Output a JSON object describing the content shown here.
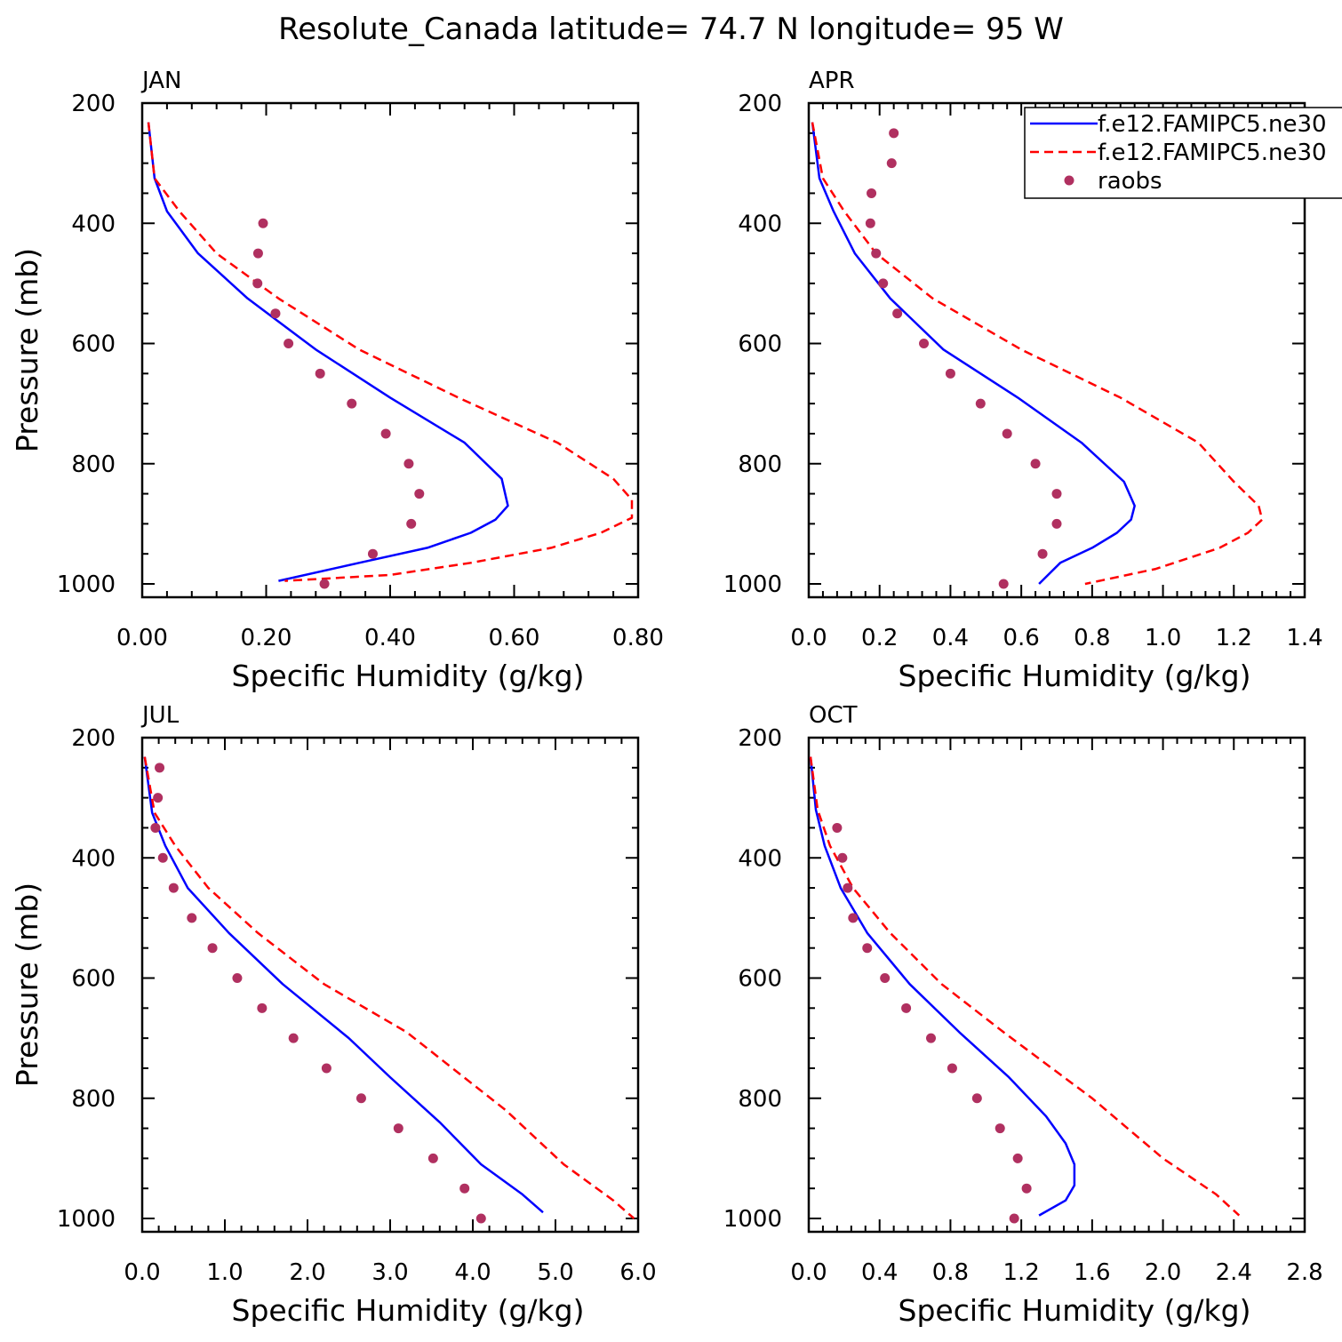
{
  "title": "Resolute_Canada  latitude= 74.7 N longitude= 95 W",
  "colors": {
    "model1": "#0000ff",
    "model2": "#ff0000",
    "raobs": "#b03060",
    "axis": "#000000"
  },
  "legend": {
    "entries": [
      {
        "label": "f.e12.FAMIPC5.ne30",
        "style": "solid",
        "color": "#0000ff"
      },
      {
        "label": "f.e12.FAMIPC5.ne30",
        "style": "dashed",
        "color": "#ff0000"
      },
      {
        "label": "raobs",
        "style": "marker",
        "color": "#b03060"
      }
    ],
    "placement": "top-right of APR panel"
  },
  "chart_data": [
    {
      "type": "line",
      "panel_label": "JAN",
      "xlabel": "Specific Humidity (g/kg)",
      "ylabel": "Pressure (mb)",
      "xlim": [
        0,
        0.8
      ],
      "ylim": [
        200,
        1000
      ],
      "y_inverted": true,
      "xticks": [
        "0.00",
        "0.20",
        "0.40",
        "0.60",
        "0.80"
      ],
      "yticks": [
        "200",
        "400",
        "600",
        "800",
        "1000"
      ],
      "series": [
        {
          "name": "f.e12.FAMIPC5.ne30",
          "style": "solid",
          "color": "#0000ff",
          "x": [
            0.01,
            0.02,
            0.04,
            0.09,
            0.17,
            0.28,
            0.4,
            0.52,
            0.58,
            0.59,
            0.57,
            0.53,
            0.46,
            0.35,
            0.22
          ],
          "y": [
            232,
            325,
            380,
            450,
            525,
            610,
            690,
            765,
            825,
            870,
            893,
            915,
            940,
            965,
            995
          ]
        },
        {
          "name": "f.e12.FAMIPC5.ne30",
          "style": "dashed",
          "color": "#ff0000",
          "x": [
            0.01,
            0.02,
            0.06,
            0.12,
            0.22,
            0.35,
            0.51,
            0.67,
            0.76,
            0.79,
            0.79,
            0.74,
            0.66,
            0.53,
            0.4,
            0.23
          ],
          "y": [
            232,
            325,
            380,
            450,
            525,
            610,
            690,
            765,
            825,
            860,
            890,
            915,
            940,
            965,
            985,
            995
          ]
        },
        {
          "name": "raobs",
          "style": "marker",
          "color": "#b03060",
          "x": [
            0.195,
            0.187,
            0.186,
            0.215,
            0.236,
            0.287,
            0.338,
            0.393,
            0.43,
            0.447,
            0.434,
            0.372,
            0.294
          ],
          "y": [
            400,
            450,
            500,
            550,
            600,
            650,
            700,
            750,
            800,
            850,
            900,
            950,
            1000
          ]
        }
      ]
    },
    {
      "type": "line",
      "panel_label": "APR",
      "xlabel": "Specific Humidity (g/kg)",
      "ylabel": "",
      "xlim": [
        0,
        1.4
      ],
      "ylim": [
        200,
        1000
      ],
      "y_inverted": true,
      "xticks": [
        "0.0",
        "0.2",
        "0.4",
        "0.6",
        "0.8",
        "1.0",
        "1.2",
        "1.4"
      ],
      "yticks": [
        "200",
        "400",
        "600",
        "800",
        "1000"
      ],
      "series": [
        {
          "name": "f.e12.FAMIPC5.ne30",
          "style": "solid",
          "color": "#0000ff",
          "x": [
            0.01,
            0.03,
            0.07,
            0.13,
            0.23,
            0.38,
            0.59,
            0.77,
            0.89,
            0.92,
            0.91,
            0.87,
            0.8,
            0.71,
            0.65
          ],
          "y": [
            232,
            325,
            380,
            450,
            525,
            610,
            690,
            765,
            830,
            870,
            893,
            915,
            940,
            965,
            1000
          ]
        },
        {
          "name": "f.e12.FAMIPC5.ne30",
          "style": "dashed",
          "color": "#ff0000",
          "x": [
            0.01,
            0.04,
            0.1,
            0.19,
            0.35,
            0.6,
            0.88,
            1.1,
            1.2,
            1.27,
            1.28,
            1.24,
            1.16,
            0.98,
            0.78
          ],
          "y": [
            232,
            325,
            380,
            450,
            525,
            610,
            690,
            765,
            830,
            870,
            893,
            915,
            940,
            975,
            1000
          ]
        },
        {
          "name": "raobs",
          "style": "marker",
          "color": "#b03060",
          "x": [
            0.24,
            0.234,
            0.177,
            0.174,
            0.19,
            0.21,
            0.25,
            0.325,
            0.4,
            0.485,
            0.56,
            0.64,
            0.7,
            0.7,
            0.66,
            0.55
          ],
          "y": [
            250,
            300,
            350,
            400,
            450,
            500,
            550,
            600,
            650,
            700,
            750,
            800,
            850,
            900,
            950,
            1000
          ]
        }
      ]
    },
    {
      "type": "line",
      "panel_label": "JUL",
      "xlabel": "Specific Humidity (g/kg)",
      "ylabel": "Pressure (mb)",
      "xlim": [
        0,
        6
      ],
      "ylim": [
        200,
        1000
      ],
      "y_inverted": true,
      "xticks": [
        "0.0",
        "1.0",
        "2.0",
        "3.0",
        "4.0",
        "5.0",
        "6.0"
      ],
      "yticks": [
        "200",
        "400",
        "600",
        "800",
        "1000"
      ],
      "series": [
        {
          "name": "f.e12.FAMIPC5.ne30",
          "style": "solid",
          "color": "#0000ff",
          "x": [
            0.03,
            0.12,
            0.28,
            0.55,
            1.05,
            1.7,
            2.5,
            3.0,
            3.6,
            4.1,
            4.6,
            4.85
          ],
          "y": [
            232,
            325,
            380,
            450,
            525,
            610,
            700,
            765,
            840,
            910,
            960,
            990
          ]
        },
        {
          "name": "f.e12.FAMIPC5.ne30",
          "style": "dashed",
          "color": "#ff0000",
          "x": [
            0.03,
            0.15,
            0.4,
            0.8,
            1.4,
            2.2,
            3.2,
            4.4,
            5.1,
            5.7,
            5.95
          ],
          "y": [
            232,
            325,
            380,
            450,
            525,
            610,
            690,
            820,
            910,
            970,
            1000
          ]
        },
        {
          "name": "raobs",
          "style": "marker",
          "color": "#b03060",
          "x": [
            0.21,
            0.19,
            0.16,
            0.25,
            0.38,
            0.6,
            0.85,
            1.15,
            1.45,
            1.83,
            2.23,
            2.65,
            3.1,
            3.52,
            3.9,
            4.1
          ],
          "y": [
            250,
            300,
            350,
            400,
            450,
            500,
            550,
            600,
            650,
            700,
            750,
            800,
            850,
            900,
            950,
            1000
          ]
        }
      ]
    },
    {
      "type": "line",
      "panel_label": "OCT",
      "xlabel": "Specific Humidity (g/kg)",
      "ylabel": "",
      "xlim": [
        0,
        2.8
      ],
      "ylim": [
        200,
        1000
      ],
      "y_inverted": true,
      "xticks": [
        "0.0",
        "0.4",
        "0.8",
        "1.2",
        "1.6",
        "2.0",
        "2.4",
        "2.8"
      ],
      "yticks": [
        "200",
        "400",
        "600",
        "800",
        "1000"
      ],
      "series": [
        {
          "name": "f.e12.FAMIPC5.ne30",
          "style": "solid",
          "color": "#0000ff",
          "x": [
            0.01,
            0.04,
            0.09,
            0.18,
            0.33,
            0.57,
            0.85,
            1.13,
            1.34,
            1.45,
            1.5,
            1.5,
            1.45,
            1.3
          ],
          "y": [
            232,
            320,
            380,
            450,
            525,
            610,
            690,
            765,
            830,
            875,
            910,
            945,
            970,
            995
          ]
        },
        {
          "name": "f.e12.FAMIPC5.ne30",
          "style": "dashed",
          "color": "#ff0000",
          "x": [
            0.01,
            0.05,
            0.12,
            0.25,
            0.46,
            0.75,
            1.1,
            1.6,
            2.0,
            2.3,
            2.43
          ],
          "y": [
            232,
            320,
            380,
            450,
            525,
            610,
            690,
            800,
            900,
            960,
            995
          ]
        },
        {
          "name": "raobs",
          "style": "marker",
          "color": "#b03060",
          "x": [
            0.16,
            0.19,
            0.22,
            0.25,
            0.33,
            0.43,
            0.55,
            0.69,
            0.81,
            0.95,
            1.08,
            1.18,
            1.23,
            1.16
          ],
          "y": [
            350,
            400,
            450,
            500,
            550,
            600,
            650,
            700,
            750,
            800,
            850,
            900,
            950,
            1000
          ]
        }
      ]
    }
  ]
}
